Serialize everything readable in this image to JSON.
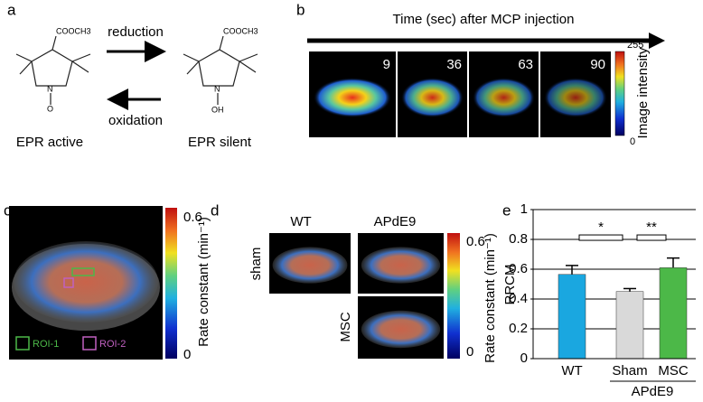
{
  "panel_a": {
    "label": "a",
    "substituent_left": "COOCH3",
    "substituent_right": "COOCH3",
    "n_left": "N",
    "o_left": "O",
    "n_right": "N",
    "oh_right": "OH",
    "reduction": "reduction",
    "oxidation": "oxidation",
    "left_caption": "EPR active",
    "right_caption": "EPR silent"
  },
  "panel_b": {
    "label": "b",
    "title": "Time (sec) after MCP injection",
    "times": [
      "9",
      "36",
      "63",
      "90"
    ],
    "scale_max": "255",
    "scale_min": "0",
    "scale_label": "Image intensity"
  },
  "panel_c": {
    "label": "c",
    "scale_max": "0.6",
    "scale_min": "0",
    "scale_label": "Rate constant (min⁻¹)",
    "roi_1": "ROI-1",
    "roi_2": "ROI-2"
  },
  "panel_d": {
    "label": "d",
    "col_1": "WT",
    "col_2": "APdE9",
    "row_1": "sham",
    "row_2": "MSC",
    "scale_max": "0.6",
    "scale_min": "0",
    "scale_label": "Rate constant (min⁻¹)"
  },
  "panel_e": {
    "label": "e",
    "group_label": "APdE9",
    "sig_1": "*",
    "sig_2": "**"
  },
  "chart_data": {
    "type": "bar",
    "y_label": "RRCM",
    "categories": [
      "WT",
      "Sham",
      "MSC"
    ],
    "series": [
      {
        "name": "RRCM",
        "values": [
          0.565,
          0.45,
          0.61
        ],
        "errors": [
          0.06,
          0.02,
          0.065
        ],
        "colors": [
          "#1aa7e0",
          "#d9d9d9",
          "#4cb848"
        ]
      }
    ],
    "ylim": [
      0,
      1
    ],
    "yticks": [
      0,
      0.2,
      0.4,
      0.6,
      0.8,
      1
    ],
    "grid": true
  }
}
